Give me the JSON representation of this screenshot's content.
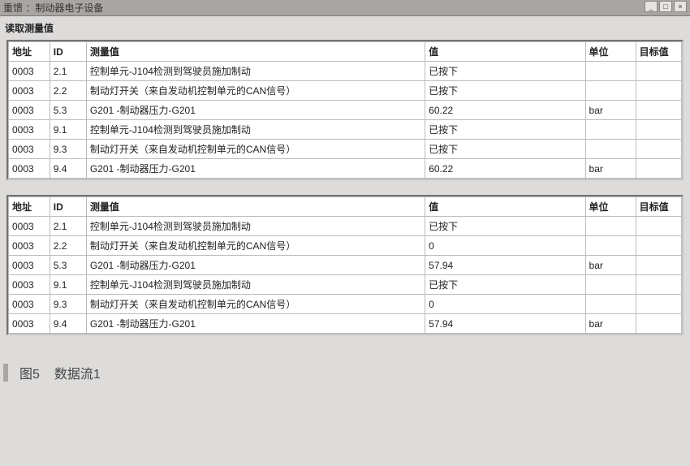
{
  "topbar": {
    "title": "重馈 ：制动器电子设备"
  },
  "section": {
    "label": "读取测量值"
  },
  "columns": {
    "addr": "地址",
    "id": "ID",
    "desc": "测量值",
    "val": "值",
    "unit": "单位",
    "target": "目标值"
  },
  "table1": {
    "rows": [
      {
        "addr": "0003",
        "id": "2.1",
        "desc": "控制单元-J104检测到驾驶员施加制动",
        "val": "已按下",
        "unit": "",
        "target": ""
      },
      {
        "addr": "0003",
        "id": "2.2",
        "desc": "制动灯开关（来自发动机控制单元的CAN信号）",
        "val": "已按下",
        "unit": "",
        "target": ""
      },
      {
        "addr": "0003",
        "id": "5.3",
        "desc": "G201 -制动器压力-G201",
        "val": "60.22",
        "unit": "bar",
        "target": ""
      },
      {
        "addr": "0003",
        "id": "9.1",
        "desc": "控制单元-J104检测到驾驶员施加制动",
        "val": "已按下",
        "unit": "",
        "target": ""
      },
      {
        "addr": "0003",
        "id": "9.3",
        "desc": "制动灯开关（来自发动机控制单元的CAN信号）",
        "val": "已按下",
        "unit": "",
        "target": ""
      },
      {
        "addr": "0003",
        "id": "9.4",
        "desc": "G201 -制动器压力-G201",
        "val": "60.22",
        "unit": "bar",
        "target": ""
      }
    ]
  },
  "table2": {
    "rows": [
      {
        "addr": "0003",
        "id": "2.1",
        "desc": "控制单元-J104检测到驾驶员施加制动",
        "val": "已按下",
        "unit": "",
        "target": ""
      },
      {
        "addr": "0003",
        "id": "2.2",
        "desc": "制动灯开关（来自发动机控制单元的CAN信号）",
        "val": "0",
        "unit": "",
        "target": ""
      },
      {
        "addr": "0003",
        "id": "5.3",
        "desc": "G201 -制动器压力-G201",
        "val": "57.94",
        "unit": "bar",
        "target": ""
      },
      {
        "addr": "0003",
        "id": "9.1",
        "desc": "控制单元-J104检测到驾驶员施加制动",
        "val": "已按下",
        "unit": "",
        "target": ""
      },
      {
        "addr": "0003",
        "id": "9.3",
        "desc": "制动灯开关（来自发动机控制单元的CAN信号）",
        "val": "0",
        "unit": "",
        "target": ""
      },
      {
        "addr": "0003",
        "id": "9.4",
        "desc": "G201 -制动器压力-G201",
        "val": "57.94",
        "unit": "bar",
        "target": ""
      }
    ]
  },
  "caption": {
    "fig": "图5",
    "text": "数据流1"
  }
}
